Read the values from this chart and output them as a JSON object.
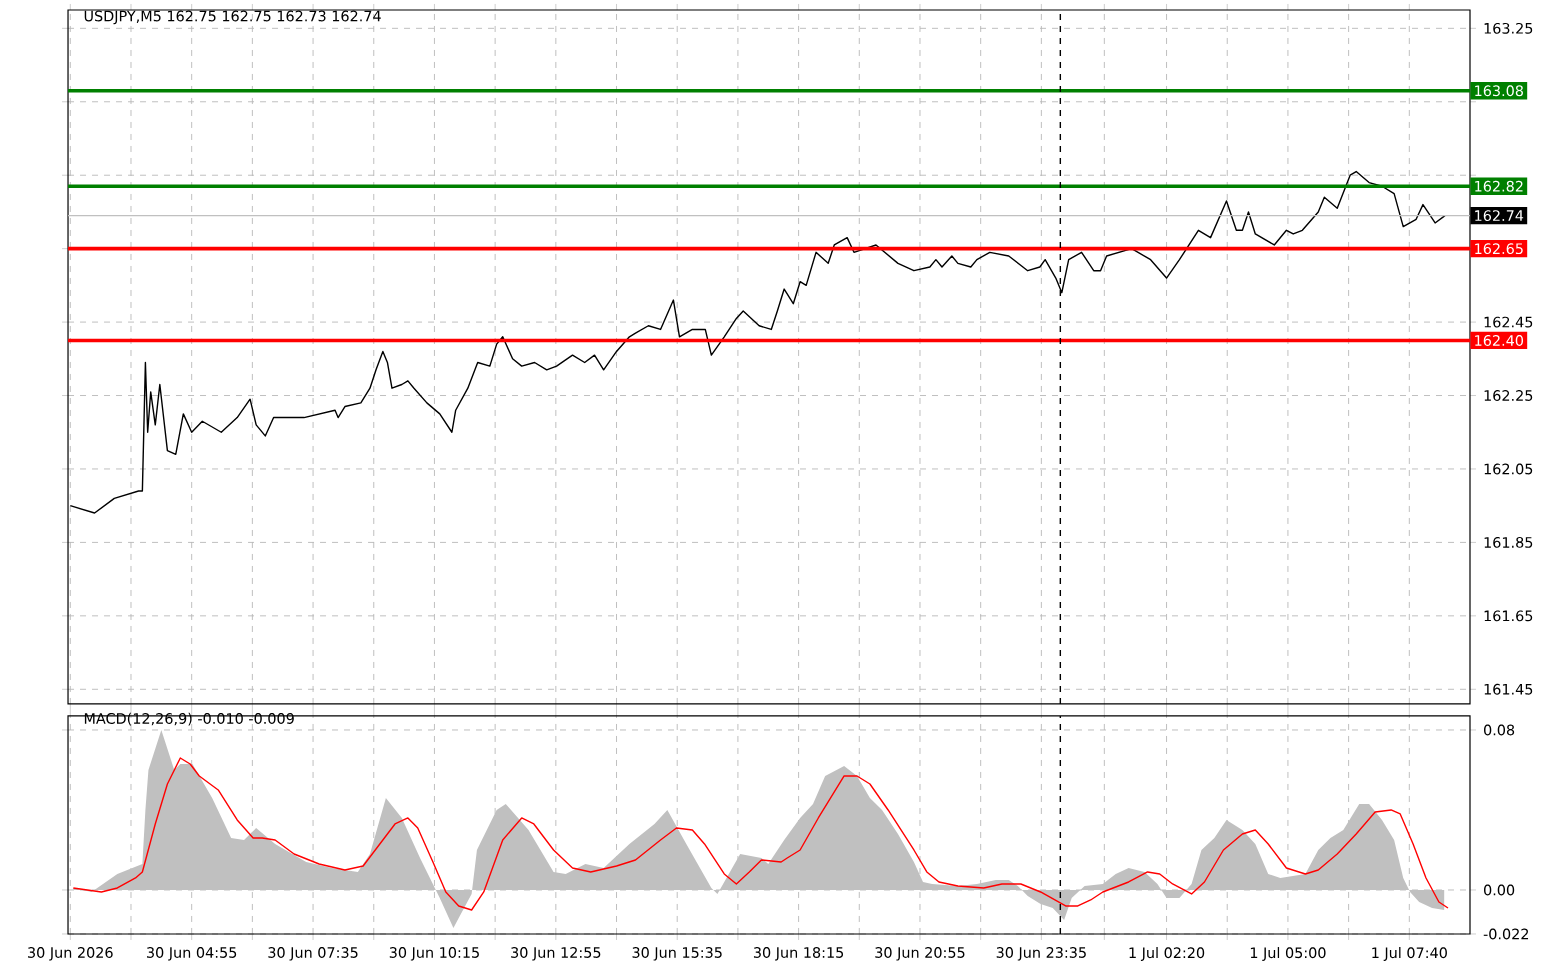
{
  "chart_data": [
    {
      "type": "line",
      "title": "USDJPY,M5 162.75 162.75 162.73 162.74",
      "x": [
        "2026-06-30T02:15",
        "2026-06-30T02:47",
        "2026-06-30T03:13",
        "2026-06-30T03:45",
        "2026-06-30T03:50",
        "2026-06-30T03:54",
        "2026-06-30T03:57",
        "2026-06-30T04:01",
        "2026-06-30T04:07",
        "2026-06-30T04:13",
        "2026-06-30T04:23",
        "2026-06-30T04:34",
        "2026-06-30T04:44",
        "2026-06-30T04:55",
        "2026-06-30T05:09",
        "2026-06-30T05:34",
        "2026-06-30T05:55",
        "2026-06-30T06:12",
        "2026-06-30T06:20",
        "2026-06-30T06:32",
        "2026-06-30T06:43",
        "2026-06-30T07:23",
        "2026-06-30T08:04",
        "2026-06-30T08:08",
        "2026-06-30T08:17",
        "2026-06-30T08:38",
        "2026-06-30T08:50",
        "2026-06-30T08:58",
        "2026-06-30T09:07",
        "2026-06-30T09:13",
        "2026-06-30T09:19",
        "2026-06-30T09:32",
        "2026-06-30T09:40",
        "2026-06-30T09:48",
        "2026-06-30T10:05",
        "2026-06-30T10:22",
        "2026-06-30T10:38",
        "2026-06-30T10:43",
        "2026-06-30T10:59",
        "2026-06-30T11:12",
        "2026-06-30T11:28",
        "2026-06-30T11:37",
        "2026-06-30T11:45",
        "2026-06-30T11:58",
        "2026-06-30T12:10",
        "2026-06-30T12:27",
        "2026-06-30T12:43",
        "2026-06-30T12:56",
        "2026-06-30T13:17",
        "2026-06-30T13:33",
        "2026-06-30T13:46",
        "2026-06-30T13:58",
        "2026-06-30T14:15",
        "2026-06-30T14:32",
        "2026-06-30T14:40",
        "2026-06-30T14:57",
        "2026-06-30T15:13",
        "2026-06-30T15:30",
        "2026-06-30T15:38",
        "2026-06-30T15:55",
        "2026-06-30T16:12",
        "2026-06-30T16:20",
        "2026-06-30T16:37",
        "2026-06-30T16:53",
        "2026-06-30T17:02",
        "2026-06-30T17:23",
        "2026-06-30T17:39",
        "2026-06-30T17:47",
        "2026-06-30T17:56",
        "2026-06-30T18:08",
        "2026-06-30T18:17",
        "2026-06-30T18:25",
        "2026-06-30T18:38",
        "2026-06-30T18:54",
        "2026-06-30T19:02",
        "2026-06-30T19:19",
        "2026-06-30T19:28",
        "2026-06-30T19:57",
        "2026-06-30T20:26",
        "2026-06-30T20:47",
        "2026-06-30T21:08",
        "2026-06-30T21:16",
        "2026-06-30T21:24",
        "2026-06-30T21:37",
        "2026-06-30T21:45",
        "2026-06-30T22:02",
        "2026-06-30T22:10",
        "2026-06-30T22:27",
        "2026-06-30T22:52",
        "2026-06-30T23:17",
        "2026-06-30T23:33",
        "2026-06-30T23:40",
        "2026-06-30T23:54",
        "2026-07-01T00:02",
        "2026-07-01T00:11",
        "2026-07-01T00:28",
        "2026-07-01T00:44",
        "2026-07-01T00:53",
        "2026-07-01T01:01",
        "2026-07-01T01:34",
        "2026-07-01T01:59",
        "2026-07-01T02:20",
        "2026-07-01T02:37",
        "2026-07-01T03:02",
        "2026-07-01T03:18",
        "2026-07-01T03:39",
        "2026-07-01T03:52",
        "2026-07-01T04:00",
        "2026-07-01T04:08",
        "2026-07-01T04:17",
        "2026-07-01T04:42",
        "2026-07-01T04:58",
        "2026-07-01T05:07",
        "2026-07-01T05:19",
        "2026-07-01T05:40",
        "2026-07-01T05:48",
        "2026-07-01T06:05",
        "2026-07-01T06:22",
        "2026-07-01T06:30",
        "2026-07-01T06:47",
        "2026-07-01T07:04",
        "2026-07-01T07:20",
        "2026-07-01T07:32",
        "2026-07-01T07:49",
        "2026-07-01T07:58",
        "2026-07-01T08:14",
        "2026-07-01T08:27"
      ],
      "series": [
        {
          "color": "#000000",
          "values": [
            161.95,
            161.93,
            161.97,
            161.99,
            161.99,
            162.34,
            162.15,
            162.26,
            162.17,
            162.28,
            162.1,
            162.09,
            162.2,
            162.15,
            162.18,
            162.15,
            162.19,
            162.24,
            162.17,
            162.14,
            162.19,
            162.19,
            162.21,
            162.19,
            162.22,
            162.23,
            162.27,
            162.32,
            162.37,
            162.34,
            162.27,
            162.28,
            162.29,
            162.27,
            162.23,
            162.2,
            162.15,
            162.21,
            162.27,
            162.34,
            162.33,
            162.39,
            162.41,
            162.35,
            162.33,
            162.34,
            162.32,
            162.33,
            162.36,
            162.34,
            162.36,
            162.32,
            162.37,
            162.41,
            162.42,
            162.44,
            162.43,
            162.51,
            162.41,
            162.43,
            162.43,
            162.36,
            162.41,
            162.46,
            162.48,
            162.44,
            162.43,
            162.48,
            162.54,
            162.5,
            162.56,
            162.55,
            162.64,
            162.61,
            162.66,
            162.68,
            162.64,
            162.66,
            162.61,
            162.59,
            162.6,
            162.62,
            162.6,
            162.63,
            162.61,
            162.6,
            162.62,
            162.64,
            162.63,
            162.59,
            162.6,
            162.62,
            162.57,
            162.53,
            162.62,
            162.64,
            162.59,
            162.59,
            162.63,
            162.65,
            162.62,
            162.57,
            162.62,
            162.7,
            162.68,
            162.78,
            162.7,
            162.7,
            162.75,
            162.69,
            162.66,
            162.7,
            162.69,
            162.7,
            162.75,
            162.79,
            162.76,
            162.85,
            162.86,
            162.83,
            162.82,
            162.8,
            162.71,
            162.73,
            162.77,
            162.72,
            162.74
          ]
        }
      ],
      "xlim": [
        "2026-06-30T02:12",
        "2026-07-01T09:00"
      ],
      "ylim": [
        161.41,
        163.3
      ],
      "xticks": [
        "2026-06-30T02:15",
        "2026-06-30T03:35",
        "2026-06-30T04:55",
        "2026-06-30T06:15",
        "2026-06-30T07:35",
        "2026-06-30T08:55",
        "2026-06-30T10:15",
        "2026-06-30T11:35",
        "2026-06-30T12:55",
        "2026-06-30T14:15",
        "2026-06-30T15:35",
        "2026-06-30T16:55",
        "2026-06-30T18:15",
        "2026-06-30T19:35",
        "2026-06-30T20:55",
        "2026-06-30T22:15",
        "2026-06-30T23:35",
        "2026-07-01T00:58",
        "2026-07-01T02:20",
        "2026-07-01T03:40",
        "2026-07-01T05:00",
        "2026-07-01T06:20",
        "2026-07-01T07:40"
      ],
      "yticks": [
        161.45,
        161.65,
        161.85,
        162.05,
        162.25,
        162.45,
        {
          "value": 162.65,
          "label": null
        },
        {
          "value": 162.85,
          "label": null
        },
        {
          "value": 163.05,
          "label": null
        },
        163.25
      ],
      "tick_labels": "y",
      "grid": true,
      "ref_lines": [
        {
          "axis": "y",
          "value": 163.08,
          "label": "163.08",
          "color": "#008000"
        },
        {
          "axis": "y",
          "value": 162.82,
          "label": "162.82",
          "color": "#008000"
        },
        {
          "axis": "y",
          "value": 162.74,
          "label": "162.74",
          "color": "#c0c0c0"
        },
        {
          "axis": "y",
          "value": 162.65,
          "label": "162.65",
          "color": "#ff0000"
        },
        {
          "axis": "y",
          "value": 162.4,
          "label": "162.40",
          "color": "#ff0000"
        },
        {
          "axis": "x",
          "value": "2026-07-01T00:00",
          "color": "#000000",
          "line_style": "dashed"
        }
      ]
    },
    {
      "type": "area",
      "title": "MACD(12,26,9) -0.010 -0.009",
      "series": [
        {
          "type": "area",
          "color": "#c0c0c0",
          "x": [
            "2026-06-30T02:19",
            "2026-06-30T02:43",
            "2026-06-30T03:17",
            "2026-06-30T03:50",
            "2026-06-30T03:54",
            "2026-06-30T03:58",
            "2026-06-30T04:15",
            "2026-06-30T04:32",
            "2026-06-30T04:40",
            "2026-06-30T04:56",
            "2026-06-30T05:22",
            "2026-06-30T05:47",
            "2026-06-30T06:04",
            "2026-06-30T06:20",
            "2026-06-30T06:45",
            "2026-06-30T07:26",
            "2026-06-30T08:00",
            "2026-06-30T08:34",
            "2026-06-30T08:50",
            "2026-06-30T09:11",
            "2026-06-30T09:32",
            "2026-06-30T09:56",
            "2026-06-30T10:22",
            "2026-06-30T10:40",
            "2026-06-30T10:47",
            "2026-06-30T11:04",
            "2026-06-30T11:11",
            "2026-06-30T11:37",
            "2026-06-30T11:49",
            "2026-06-30T12:19",
            "2026-06-30T12:52",
            "2026-06-30T13:08",
            "2026-06-30T13:34",
            "2026-06-30T13:58",
            "2026-06-30T14:32",
            "2026-06-30T15:05",
            "2026-06-30T15:22",
            "2026-06-30T15:47",
            "2026-06-30T16:20",
            "2026-06-30T16:28",
            "2026-06-30T16:58",
            "2026-06-30T17:26",
            "2026-06-30T17:35",
            "2026-06-30T17:56",
            "2026-06-30T18:17",
            "2026-06-30T18:34",
            "2026-06-30T18:50",
            "2026-06-30T19:15",
            "2026-06-30T19:32",
            "2026-06-30T19:49",
            "2026-06-30T20:05",
            "2026-06-30T20:26",
            "2026-06-30T20:47",
            "2026-06-30T20:59",
            "2026-06-30T21:11",
            "2026-06-30T21:45",
            "2026-06-30T22:10",
            "2026-06-30T22:35",
            "2026-06-30T22:52",
            "2026-06-30T23:04",
            "2026-06-30T23:17",
            "2026-06-30T23:34",
            "2026-06-30T23:50",
            "2026-07-01T00:05",
            "2026-07-01T00:15",
            "2026-07-01T00:32",
            "2026-07-01T00:56",
            "2026-07-01T01:13",
            "2026-07-01T01:30",
            "2026-07-01T01:51",
            "2026-07-01T02:08",
            "2026-07-01T02:20",
            "2026-07-01T02:37",
            "2026-07-01T02:53",
            "2026-07-01T03:06",
            "2026-07-01T03:23",
            "2026-07-01T03:39",
            "2026-07-01T04:00",
            "2026-07-01T04:17",
            "2026-07-01T04:34",
            "2026-07-01T04:50",
            "2026-07-01T05:23",
            "2026-07-01T05:40",
            "2026-07-01T05:56",
            "2026-07-01T06:13",
            "2026-07-01T06:34",
            "2026-07-01T06:47",
            "2026-07-01T07:04",
            "2026-07-01T07:20",
            "2026-07-01T07:32",
            "2026-07-01T07:41",
            "2026-07-01T07:53",
            "2026-07-01T08:10",
            "2026-07-01T08:26"
          ],
          "values": [
            0.001,
            -0.001,
            0.008,
            0.013,
            0.04,
            0.06,
            0.08,
            0.06,
            0.063,
            0.063,
            0.046,
            0.026,
            0.025,
            0.031,
            0.023,
            0.014,
            0.011,
            0.009,
            0.018,
            0.046,
            0.036,
            0.016,
            -0.004,
            -0.019,
            -0.014,
            -0.002,
            0.02,
            0.04,
            0.043,
            0.03,
            0.009,
            0.008,
            0.013,
            0.011,
            0.023,
            0.033,
            0.04,
            0.023,
            0.001,
            -0.002,
            0.018,
            0.016,
            0.013,
            0.025,
            0.036,
            0.043,
            0.057,
            0.062,
            0.057,
            0.046,
            0.04,
            0.028,
            0.014,
            0.004,
            0.003,
            0.002,
            0.003,
            0.005,
            0.005,
            0.002,
            -0.003,
            -0.007,
            -0.009,
            -0.015,
            -0.004,
            0.002,
            0.003,
            0.008,
            0.011,
            0.009,
            0.003,
            -0.004,
            -0.004,
            0.003,
            0.02,
            0.026,
            0.035,
            0.03,
            0.023,
            0.008,
            0.006,
            0.008,
            0.02,
            0.026,
            0.03,
            0.043,
            0.043,
            0.035,
            0.025,
            0.006,
            -0.001,
            -0.006,
            -0.009,
            -0.01
          ]
        },
        {
          "type": "line",
          "color": "#ff0000",
          "x": [
            "2026-06-30T02:19",
            "2026-06-30T02:56",
            "2026-06-30T03:17",
            "2026-06-30T03:41",
            "2026-06-30T03:50",
            "2026-06-30T04:07",
            "2026-06-30T04:23",
            "2026-06-30T04:40",
            "2026-06-30T04:53",
            "2026-06-30T05:05",
            "2026-06-30T05:30",
            "2026-06-30T05:55",
            "2026-06-30T06:16",
            "2026-06-30T06:28",
            "2026-06-30T06:45",
            "2026-06-30T07:10",
            "2026-06-30T07:43",
            "2026-06-30T08:17",
            "2026-06-30T08:41",
            "2026-06-30T09:07",
            "2026-06-30T09:23",
            "2026-06-30T09:40",
            "2026-06-30T09:53",
            "2026-06-30T10:13",
            "2026-06-30T10:30",
            "2026-06-30T10:47",
            "2026-06-30T11:04",
            "2026-06-30T11:20",
            "2026-06-30T11:45",
            "2026-06-30T12:10",
            "2026-06-30T12:26",
            "2026-06-30T12:52",
            "2026-06-30T13:17",
            "2026-06-30T13:41",
            "2026-06-30T14:15",
            "2026-06-30T14:40",
            "2026-06-30T15:13",
            "2026-06-30T15:34",
            "2026-06-30T15:55",
            "2026-06-30T16:11",
            "2026-06-30T16:37",
            "2026-06-30T16:53",
            "2026-06-30T17:10",
            "2026-06-30T17:26",
            "2026-06-30T17:52",
            "2026-06-30T18:00",
            "2026-06-30T18:17",
            "2026-06-30T18:41",
            "2026-06-30T19:15",
            "2026-06-30T19:32",
            "2026-06-30T19:49",
            "2026-06-30T20:13",
            "2026-06-30T20:47",
            "2026-06-30T21:04",
            "2026-06-30T21:20",
            "2026-06-30T21:45",
            "2026-06-30T22:19",
            "2026-06-30T22:43",
            "2026-06-30T23:08",
            "2026-06-30T23:34",
            "2026-07-01T00:07",
            "2026-07-01T00:23",
            "2026-07-01T00:40",
            "2026-07-01T00:56",
            "2026-07-01T01:30",
            "2026-07-01T01:55",
            "2026-07-01T02:11",
            "2026-07-01T02:28",
            "2026-07-01T02:53",
            "2026-07-01T03:10",
            "2026-07-01T03:35",
            "2026-07-01T04:00",
            "2026-07-01T04:17",
            "2026-07-01T04:34",
            "2026-07-01T04:58",
            "2026-07-01T05:23",
            "2026-07-01T05:40",
            "2026-07-01T06:05",
            "2026-07-01T06:30",
            "2026-07-01T06:55",
            "2026-07-01T07:16",
            "2026-07-01T07:28",
            "2026-07-01T07:45",
            "2026-07-01T08:02",
            "2026-07-01T08:19",
            "2026-07-01T08:31"
          ],
          "values": [
            0.001,
            -0.001,
            0.001,
            0.006,
            0.009,
            0.033,
            0.053,
            0.066,
            0.063,
            0.057,
            0.05,
            0.035,
            0.026,
            0.026,
            0.025,
            0.018,
            0.013,
            0.01,
            0.012,
            0.025,
            0.033,
            0.036,
            0.031,
            0.014,
            -0.001,
            -0.008,
            -0.01,
            -0.001,
            0.025,
            0.036,
            0.033,
            0.02,
            0.011,
            0.009,
            0.012,
            0.015,
            0.025,
            0.031,
            0.03,
            0.023,
            0.008,
            0.003,
            0.009,
            0.015,
            0.014,
            0.016,
            0.02,
            0.036,
            0.057,
            0.057,
            0.053,
            0.04,
            0.02,
            0.009,
            0.004,
            0.002,
            0.001,
            0.003,
            0.003,
            -0.001,
            -0.008,
            -0.008,
            -0.005,
            -0.001,
            0.004,
            0.009,
            0.008,
            0.003,
            -0.002,
            0.004,
            0.02,
            0.028,
            0.03,
            0.023,
            0.011,
            0.008,
            0.01,
            0.018,
            0.028,
            0.039,
            0.04,
            0.038,
            0.023,
            0.006,
            -0.006,
            -0.009
          ]
        }
      ],
      "xlim": [
        "2026-06-30T02:12",
        "2026-07-01T09:00"
      ],
      "ylim": [
        -0.022,
        0.087
      ],
      "xticks": [
        {
          "value": "2026-06-30T02:15",
          "label": "30 Jun 2026"
        },
        {
          "value": "2026-06-30T03:35",
          "label": null
        },
        {
          "value": "2026-06-30T04:55",
          "label": "30 Jun 04:55"
        },
        {
          "value": "2026-06-30T06:15",
          "label": null
        },
        {
          "value": "2026-06-30T07:35",
          "label": "30 Jun 07:35"
        },
        {
          "value": "2026-06-30T08:55",
          "label": null
        },
        {
          "value": "2026-06-30T10:15",
          "label": "30 Jun 10:15"
        },
        {
          "value": "2026-06-30T11:35",
          "label": null
        },
        {
          "value": "2026-06-30T12:55",
          "label": "30 Jun 12:55"
        },
        {
          "value": "2026-06-30T14:15",
          "label": null
        },
        {
          "value": "2026-06-30T15:35",
          "label": "30 Jun 15:35"
        },
        {
          "value": "2026-06-30T16:55",
          "label": null
        },
        {
          "value": "2026-06-30T18:15",
          "label": "30 Jun 18:15"
        },
        {
          "value": "2026-06-30T19:35",
          "label": null
        },
        {
          "value": "2026-06-30T20:55",
          "label": "30 Jun 20:55"
        },
        {
          "value": "2026-06-30T22:15",
          "label": null
        },
        {
          "value": "2026-06-30T23:35",
          "label": "30 Jun 23:35"
        },
        {
          "value": "2026-07-01T00:58",
          "label": null
        },
        {
          "value": "2026-07-01T02:20",
          "label": "1 Jul 02:20"
        },
        {
          "value": "2026-07-01T03:40",
          "label": null
        },
        {
          "value": "2026-07-01T05:00",
          "label": "1 Jul 05:00"
        },
        {
          "value": "2026-07-01T06:20",
          "label": null
        },
        {
          "value": "2026-07-01T07:40",
          "label": "1 Jul 07:40"
        }
      ],
      "yticks": [
        -0.022,
        {
          "value": 0,
          "label": "0.00"
        },
        0.08
      ],
      "grid": true,
      "ref_lines": [
        {
          "axis": "x",
          "value": "2026-07-01T00:00",
          "color": "#000000",
          "line_style": "dashed"
        }
      ]
    }
  ]
}
